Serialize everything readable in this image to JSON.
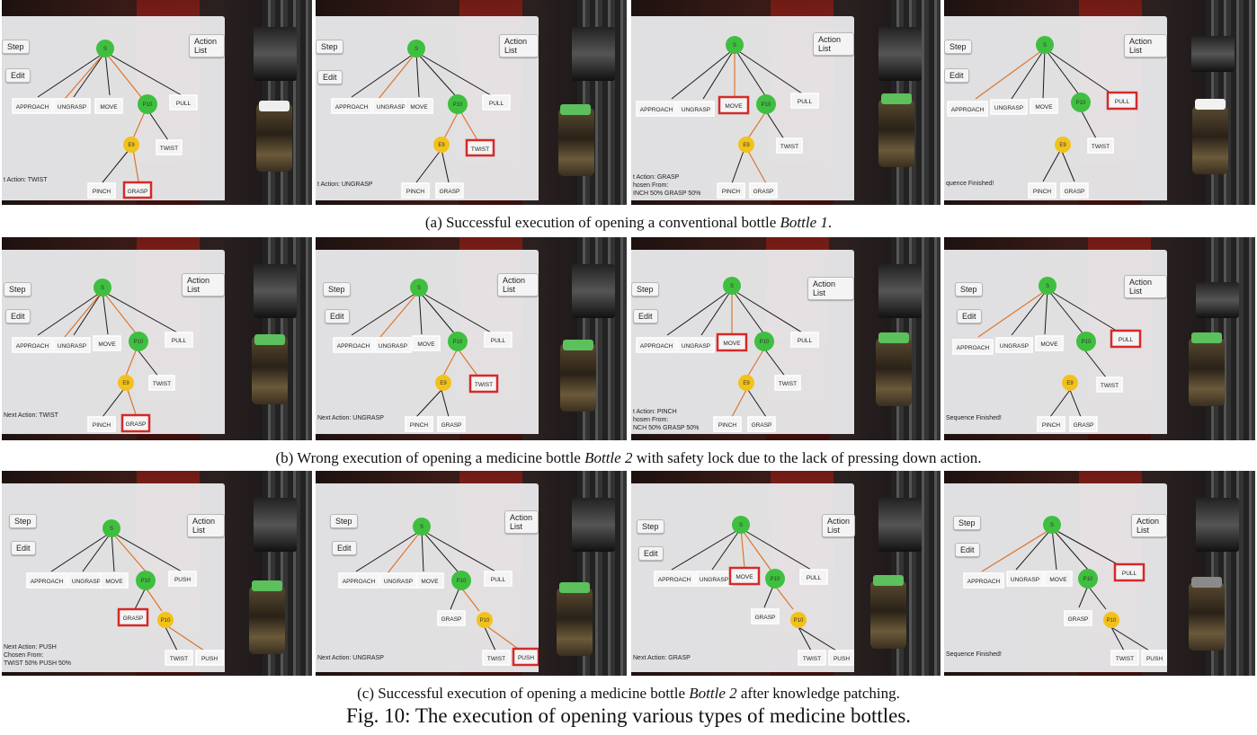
{
  "ui": {
    "step_label": "Step",
    "edit_label": "Edit",
    "action_list_label": "Action List"
  },
  "graph_labels": {
    "s": "S",
    "p10": "P10",
    "e9": "E9",
    "approach": "APPROACH",
    "ungrasp": "UNGRASP",
    "move": "MOVE",
    "pull": "PULL",
    "twist": "TWIST",
    "pinch": "PINCH",
    "grasp": "GRASP",
    "push": "PUSH"
  },
  "colors": {
    "green_node": "#3fbf3f",
    "yellow_node": "#f2c21b",
    "highlight": "#d42a2a",
    "orange_edge": "#d9772f",
    "black_edge": "#1a1a1a"
  },
  "rows": [
    {
      "caption_pre": "(a) Successful execution of opening a conventional bottle ",
      "caption_em": "Bottle 1",
      "caption_post": ".",
      "panels": [
        {
          "status": "t Action: TWIST"
        },
        {
          "status": "t Action: UNGRASP"
        },
        {
          "status": "t Action: GRASP\nhosen From:\nINCH 50% GRASP 50%"
        },
        {
          "status": "quence Finished!"
        }
      ]
    },
    {
      "caption_pre": "(b) Wrong execution of opening a medicine bottle ",
      "caption_em": "Bottle 2",
      "caption_post": " with safety lock due to the lack of pressing down action.",
      "panels": [
        {
          "status": "Next Action: TWIST"
        },
        {
          "status": "Next Action: UNGRASP"
        },
        {
          "status": "t Action: PINCH\nhosen From:\nNCH 50% GRASP 50%"
        },
        {
          "status": "Sequence Finished!"
        }
      ]
    },
    {
      "caption_pre": "(c) Successful execution of opening a medicine bottle ",
      "caption_em": "Bottle 2",
      "caption_post": " after knowledge patching.",
      "panels": [
        {
          "status": "Next Action: PUSH\nChosen From:\nTWIST 50% PUSH 50%"
        },
        {
          "status": "Next Action: UNGRASP"
        },
        {
          "status": "Next Action: GRASP"
        },
        {
          "status": "Sequence Finished!"
        }
      ]
    }
  ],
  "figure_caption": "Fig. 10: The execution of opening various types of medicine bottles."
}
